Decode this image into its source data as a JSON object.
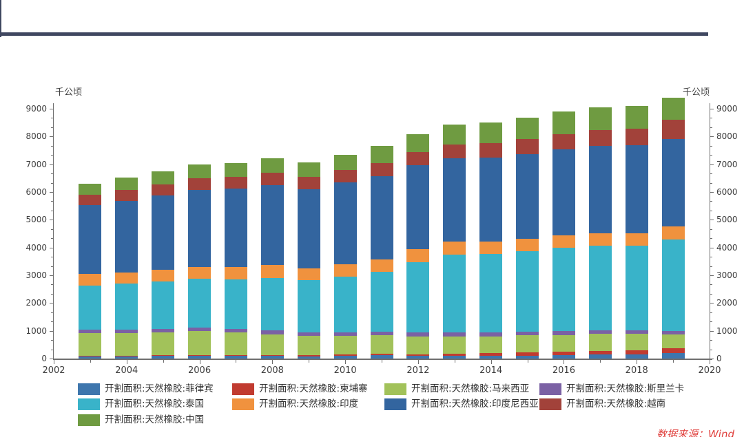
{
  "header": {
    "rule_color": "#3f4760"
  },
  "chart": {
    "unit_left": "千公顷",
    "unit_right": "千公顷",
    "y_tick_labels": [
      "0",
      "1000",
      "2000",
      "3000",
      "4000",
      "5000",
      "6000",
      "7000",
      "8000",
      "9000"
    ],
    "x_tick_labels": [
      "2002",
      "2004",
      "2006",
      "2008",
      "2010",
      "2012",
      "2014",
      "2016",
      "2018",
      "2020"
    ],
    "axis_color": "#6e6e6e",
    "label_color": "#3d3d3d"
  },
  "chart_data": {
    "type": "bar",
    "stacked": true,
    "title": "",
    "xlabel": "",
    "ylabel": "千公顷",
    "ylim": [
      0,
      9000
    ],
    "xlim": [
      2002,
      2020
    ],
    "grid": false,
    "legend_position": "bottom",
    "categories": [
      2003,
      2004,
      2005,
      2006,
      2007,
      2008,
      2009,
      2010,
      2011,
      2012,
      2013,
      2014,
      2015,
      2016,
      2017,
      2018,
      2019
    ],
    "series": [
      {
        "name": "开割面积:天然橡胶:菲律宾",
        "color": "#3e76ad",
        "values": [
          100,
          100,
          105,
          110,
          105,
          100,
          80,
          90,
          120,
          90,
          95,
          100,
          105,
          130,
          140,
          150,
          200
        ]
      },
      {
        "name": "开割面积:天然橡胶:柬埔寨",
        "color": "#c13b30",
        "values": [
          10,
          10,
          15,
          20,
          25,
          30,
          40,
          50,
          60,
          70,
          90,
          100,
          110,
          120,
          130,
          140,
          160
        ]
      },
      {
        "name": "开割面积:天然橡胶:马来西亚",
        "color": "#a2c25a",
        "values": [
          800,
          810,
          820,
          860,
          800,
          750,
          700,
          680,
          660,
          640,
          620,
          600,
          620,
          600,
          620,
          600,
          510
        ]
      },
      {
        "name": "开割面积:天然橡胶:斯里兰卡",
        "color": "#7b61a4",
        "values": [
          130,
          130,
          130,
          130,
          130,
          130,
          130,
          130,
          130,
          130,
          130,
          130,
          130,
          130,
          130,
          130,
          130
        ]
      },
      {
        "name": "开割面积:天然橡胶:泰国",
        "color": "#39b3c9",
        "values": [
          1600,
          1650,
          1700,
          1750,
          1800,
          1900,
          1870,
          2000,
          2150,
          2550,
          2800,
          2850,
          2900,
          3000,
          3050,
          3050,
          3300
        ]
      },
      {
        "name": "开割面积:天然橡胶:印度",
        "color": "#f0923e",
        "values": [
          410,
          410,
          420,
          430,
          440,
          450,
          440,
          450,
          455,
          460,
          470,
          440,
          450,
          450,
          440,
          440,
          450
        ]
      },
      {
        "name": "开割面积:天然橡胶:印度尼西亚",
        "color": "#33659f",
        "values": [
          2480,
          2580,
          2680,
          2780,
          2820,
          2900,
          2850,
          2950,
          3000,
          3020,
          3000,
          3030,
          3050,
          3100,
          3150,
          3180,
          3150
        ]
      },
      {
        "name": "开割面积:天然橡胶:越南",
        "color": "#a2423a",
        "values": [
          370,
          390,
          400,
          410,
          420,
          430,
          440,
          450,
          460,
          480,
          500,
          520,
          540,
          560,
          580,
          590,
          700
        ]
      },
      {
        "name": "开割面积:天然橡胶:中国",
        "color": "#6f9b41",
        "values": [
          390,
          430,
          470,
          500,
          500,
          520,
          515,
          540,
          625,
          645,
          730,
          740,
          775,
          815,
          815,
          825,
          800
        ]
      }
    ]
  },
  "footer": {
    "source_note": "数据来源：Wind",
    "color": "#e0403d"
  }
}
